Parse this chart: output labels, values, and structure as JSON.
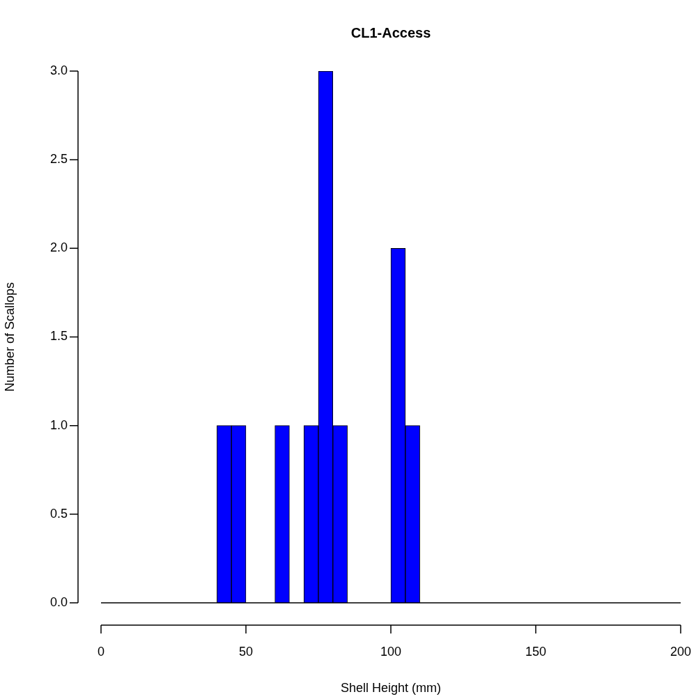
{
  "chart_data": {
    "type": "histogram",
    "title": "CL1-Access",
    "xlabel": "Shell Height (mm)",
    "ylabel": "Number of Scallops",
    "bins": [
      0,
      5,
      10,
      15,
      20,
      25,
      30,
      35,
      40,
      45,
      50,
      55,
      60,
      65,
      70,
      75,
      80,
      85,
      90,
      95,
      100,
      105,
      110,
      115,
      120,
      125,
      130,
      135,
      140,
      145,
      150,
      155,
      160,
      165,
      170,
      175,
      180,
      185,
      190,
      195,
      200
    ],
    "values": [
      0,
      0,
      0,
      0,
      0,
      0,
      0,
      0,
      1,
      1,
      0,
      0,
      1,
      0,
      1,
      3,
      1,
      0,
      0,
      0,
      2,
      1,
      0,
      0,
      0,
      0,
      0,
      0,
      0,
      0,
      0,
      0,
      0,
      0,
      0,
      0,
      0,
      0,
      0,
      0
    ],
    "color": "#0000ff",
    "xlim": [
      0,
      200
    ],
    "xticks": [
      0,
      50,
      100,
      150,
      200
    ],
    "ylim": [
      0,
      3
    ],
    "yticks": [
      {
        "value": 0,
        "label": "0.0"
      },
      {
        "value": 0.5,
        "label": "0.5"
      },
      {
        "value": 1,
        "label": "1.0"
      },
      {
        "value": 1.5,
        "label": "1.5"
      },
      {
        "value": 2,
        "label": "2.0"
      },
      {
        "value": 2.5,
        "label": "2.5"
      },
      {
        "value": 3,
        "label": "3.0"
      }
    ]
  }
}
